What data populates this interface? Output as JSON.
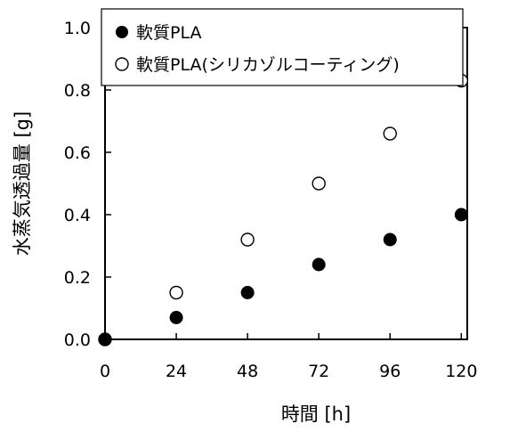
{
  "chart_data": {
    "type": "scatter",
    "xlabel": "時間 [h]",
    "ylabel": "水蒸気透過量 [g]",
    "xticks": [
      0,
      24,
      48,
      72,
      96,
      120
    ],
    "yticks": [
      "0.0",
      "0.2",
      "0.4",
      "0.6",
      "0.8",
      "1.0"
    ],
    "xlim": [
      0,
      122
    ],
    "ylim": [
      0,
      1.0
    ],
    "grid": false,
    "legend_position": "top-left",
    "series": [
      {
        "name": "軟質PLA",
        "marker": "filled-circle",
        "x": [
          0,
          24,
          48,
          72,
          96,
          120
        ],
        "y": [
          0.0,
          0.07,
          0.15,
          0.24,
          0.32,
          0.4
        ]
      },
      {
        "name": "軟質PLA(シリカゾルコーティング)",
        "marker": "open-circle",
        "x": [
          0,
          24,
          48,
          72,
          96,
          120
        ],
        "y": [
          0.0,
          0.15,
          0.32,
          0.5,
          0.66,
          0.83
        ]
      }
    ]
  }
}
